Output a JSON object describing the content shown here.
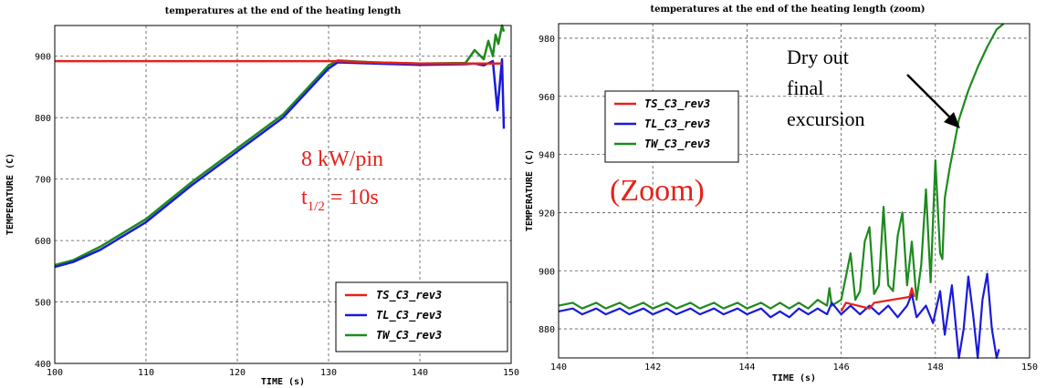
{
  "chart_data": [
    {
      "type": "line",
      "title": "temperatures at the end of the heating length",
      "xlabel": "TIME (s)",
      "ylabel": "TEMPERATURE (C)",
      "xlim": [
        100,
        150
      ],
      "ylim": [
        400,
        950
      ],
      "xticks": [
        "100",
        "110",
        "120",
        "130",
        "140",
        "150"
      ],
      "yticks": [
        "400",
        "500",
        "600",
        "700",
        "800",
        "900"
      ],
      "grid": true,
      "legend_position": "bottom-right",
      "series": [
        {
          "name": "TS_C3_rev3",
          "color": "#e8201a",
          "x": [
            100,
            110,
            120,
            130,
            131,
            135,
            140,
            145,
            149
          ],
          "y": [
            892,
            892,
            892,
            892,
            892,
            890,
            888,
            888,
            888
          ]
        },
        {
          "name": "TL_C3_rev3",
          "color": "#1a1ad8",
          "x": [
            100,
            102,
            105,
            110,
            115,
            120,
            125,
            130,
            131,
            135,
            140,
            145,
            146,
            147,
            148,
            148.5,
            149,
            149.2
          ],
          "y": [
            557,
            565,
            585,
            630,
            690,
            745,
            800,
            880,
            890,
            888,
            886,
            887,
            888,
            885,
            892,
            812,
            895,
            782
          ]
        },
        {
          "name": "TW_C3_rev3",
          "color": "#1e8a1e",
          "x": [
            100,
            102,
            105,
            110,
            115,
            120,
            125,
            130,
            131,
            135,
            140,
            145,
            146,
            147,
            147.5,
            148,
            148.3,
            148.6,
            149,
            149.2
          ],
          "y": [
            560,
            568,
            590,
            635,
            695,
            750,
            805,
            885,
            893,
            890,
            888,
            889,
            910,
            895,
            925,
            900,
            935,
            920,
            950,
            940
          ]
        }
      ],
      "annotations": [
        "8 kW/pin",
        "t",
        "1/2",
        " = 10s"
      ]
    },
    {
      "type": "line",
      "title": "temperatures at the end of the heating length (zoom)",
      "xlabel": "TIME (s)",
      "ylabel": "TEMPERATURE (C)",
      "xlim": [
        140,
        150
      ],
      "ylim": [
        870,
        985
      ],
      "xticks": [
        "140",
        "142",
        "144",
        "146",
        "148",
        "150"
      ],
      "yticks": [
        "880",
        "900",
        "920",
        "940",
        "960",
        "980"
      ],
      "grid": true,
      "legend_position": "top-left",
      "series": [
        {
          "name": "TS_C3_rev3",
          "color": "#e8201a",
          "x": [
            146.0,
            146.1,
            146.6,
            146.7,
            147.45,
            147.5,
            147.55
          ],
          "y": [
            886,
            889,
            887,
            889,
            891,
            894,
            891
          ]
        },
        {
          "name": "TL_C3_rev3",
          "color": "#1a1ad8",
          "x": [
            140,
            140.3,
            140.5,
            140.8,
            141,
            141.3,
            141.5,
            141.8,
            142,
            142.3,
            142.5,
            142.8,
            143,
            143.3,
            143.5,
            143.8,
            144,
            144.3,
            144.5,
            144.7,
            144.9,
            145.1,
            145.3,
            145.5,
            145.7,
            145.8,
            146.0,
            146.2,
            146.4,
            146.6,
            146.8,
            147.0,
            147.2,
            147.4,
            147.5,
            147.6,
            147.8,
            147.95,
            148.1,
            148.2,
            148.35,
            148.5,
            148.6,
            148.7,
            148.8,
            148.9,
            149.0,
            149.1,
            149.2,
            149.3,
            149.35
          ],
          "y": [
            886,
            887,
            885,
            887,
            885,
            887,
            885,
            887,
            885,
            887,
            885,
            887,
            885,
            887,
            885,
            887,
            885,
            887,
            884,
            886,
            884,
            887,
            885,
            887,
            885,
            889,
            885,
            888,
            885,
            888,
            885,
            888,
            884,
            888,
            892,
            884,
            888,
            882,
            893,
            878,
            895,
            870,
            880,
            898,
            885,
            862,
            890,
            899,
            880,
            865,
            873
          ]
        },
        {
          "name": "TW_C3_rev3",
          "color": "#1e8a1e",
          "x": [
            140,
            140.3,
            140.5,
            140.8,
            141,
            141.3,
            141.5,
            141.8,
            142,
            142.3,
            142.5,
            142.8,
            143,
            143.3,
            143.5,
            143.8,
            144,
            144.3,
            144.5,
            144.7,
            144.9,
            145.1,
            145.3,
            145.5,
            145.7,
            145.75,
            145.8,
            146.0,
            146.1,
            146.2,
            146.3,
            146.4,
            146.5,
            146.6,
            146.7,
            146.8,
            146.9,
            147.0,
            147.1,
            147.2,
            147.3,
            147.4,
            147.5,
            147.6,
            147.7,
            147.8,
            147.9,
            148.0,
            148.1,
            148.15,
            148.2,
            148.3,
            148.5,
            148.7,
            148.9,
            149.1,
            149.3,
            149.45
          ],
          "y": [
            888,
            889,
            887,
            889,
            887,
            889,
            887,
            889,
            887,
            889,
            887,
            889,
            887,
            889,
            887,
            889,
            887,
            889,
            887,
            889,
            887,
            889,
            887,
            890,
            888,
            894,
            888,
            890,
            898,
            906,
            890,
            893,
            910,
            915,
            892,
            895,
            922,
            895,
            893,
            912,
            920,
            895,
            910,
            890,
            902,
            928,
            896,
            938,
            906,
            904,
            925,
            935,
            952,
            962,
            970,
            977,
            983,
            987
          ]
        }
      ],
      "annotations": [
        "Dry out",
        "final",
        "excursion",
        "(Zoom)"
      ]
    }
  ]
}
